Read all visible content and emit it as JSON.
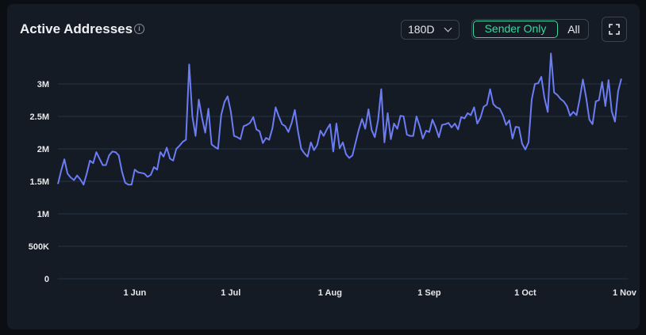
{
  "header": {
    "title": "Active Addresses",
    "info_icon": "info-icon",
    "range_value": "180D",
    "toggle_active": "Sender Only",
    "toggle_other": "All",
    "fullscreen_icon": "fullscreen-icon"
  },
  "colors": {
    "line": "#6b7cf5",
    "accent": "#3fd6a0",
    "grid": "#233447"
  },
  "chart_data": {
    "type": "line",
    "title": "Active Addresses",
    "xlabel": "",
    "ylabel": "",
    "ylim": [
      0,
      3500000
    ],
    "xlim": [
      "2024-05-08",
      "2024-11-02"
    ],
    "grid": true,
    "legend": "none",
    "y_ticks": [
      {
        "value": 0,
        "label": "0"
      },
      {
        "value": 500000,
        "label": "500K"
      },
      {
        "value": 1000000,
        "label": "1M"
      },
      {
        "value": 1500000,
        "label": "1.5M"
      },
      {
        "value": 2000000,
        "label": "2M"
      },
      {
        "value": 2500000,
        "label": "2.5M"
      },
      {
        "value": 3000000,
        "label": "3M"
      }
    ],
    "x_ticks": [
      {
        "value": "2024-06-01",
        "label": "1 Jun"
      },
      {
        "value": "2024-07-01",
        "label": "1 Jul"
      },
      {
        "value": "2024-08-01",
        "label": "1 Aug"
      },
      {
        "value": "2024-09-01",
        "label": "1 Sep"
      },
      {
        "value": "2024-10-01",
        "label": "1 Oct"
      },
      {
        "value": "2024-11-01",
        "label": "1 Nov"
      }
    ],
    "series": [
      {
        "start_date": "2024-05-08",
        "step_days": 1,
        "values": [
          1460000,
          1660000,
          1840000,
          1620000,
          1560000,
          1520000,
          1590000,
          1530000,
          1450000,
          1620000,
          1820000,
          1780000,
          1950000,
          1850000,
          1750000,
          1750000,
          1900000,
          1960000,
          1950000,
          1900000,
          1650000,
          1480000,
          1450000,
          1450000,
          1680000,
          1640000,
          1630000,
          1620000,
          1570000,
          1600000,
          1720000,
          1680000,
          1950000,
          1880000,
          2020000,
          1850000,
          1820000,
          2000000,
          2050000,
          2110000,
          2140000,
          3300000,
          2500000,
          2200000,
          2760000,
          2480000,
          2250000,
          2620000,
          2070000,
          2030000,
          2000000,
          2520000,
          2720000,
          2810000,
          2580000,
          2200000,
          2180000,
          2150000,
          2350000,
          2370000,
          2400000,
          2490000,
          2300000,
          2270000,
          2090000,
          2170000,
          2140000,
          2320000,
          2640000,
          2500000,
          2380000,
          2350000,
          2260000,
          2400000,
          2600000,
          2270000,
          2000000,
          1930000,
          1880000,
          2100000,
          1980000,
          2060000,
          2280000,
          2200000,
          2300000,
          2380000,
          1960000,
          2390000,
          2010000,
          2100000,
          1920000,
          1860000,
          1900000,
          2100000,
          2300000,
          2460000,
          2310000,
          2610000,
          2290000,
          2180000,
          2440000,
          2920000,
          2100000,
          2550000,
          2150000,
          2390000,
          2310000,
          2510000,
          2500000,
          2220000,
          2200000,
          2200000,
          2500000,
          2350000,
          2160000,
          2280000,
          2260000,
          2450000,
          2330000,
          2180000,
          2370000,
          2380000,
          2400000,
          2330000,
          2390000,
          2300000,
          2490000,
          2470000,
          2550000,
          2520000,
          2640000,
          2390000,
          2480000,
          2650000,
          2680000,
          2920000,
          2690000,
          2640000,
          2620000,
          2520000,
          2370000,
          2440000,
          2160000,
          2340000,
          2330000,
          2080000,
          1990000,
          2100000,
          2760000,
          3000000,
          3010000,
          3110000,
          2780000,
          2570000,
          3470000,
          2870000,
          2830000,
          2770000,
          2730000,
          2660000,
          2510000,
          2570000,
          2520000,
          2770000,
          3070000,
          2790000,
          2450000,
          2380000,
          2730000,
          2750000,
          3030000,
          2660000,
          3060000,
          2580000,
          2420000,
          2890000,
          3080000
        ]
      }
    ]
  }
}
